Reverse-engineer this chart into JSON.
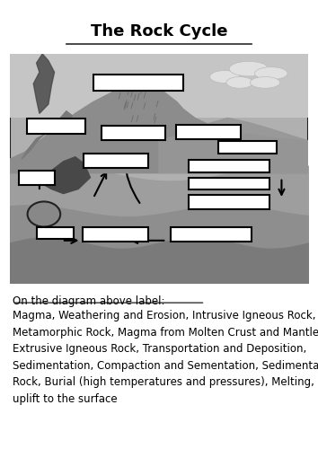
{
  "title": "The Rock Cycle",
  "title_fontsize": 13,
  "bg_color": "#ffffff",
  "image_bg": "#a0a0a0",
  "box_color": "#ffffff",
  "box_edge": "#000000",
  "instruction_underline": "On the diagram above label:",
  "instruction_text": "Magma, Weathering and Erosion, Intrusive Igneous Rock,\nMetamorphic Rock, Magma from Molten Crust and Mantle,\nExtrusive Igneous Rock, Transportation and Deposition,\nSedimentation, Compaction and Sementation, Sedimentary\nRock, Burial (high temperatures and pressures), Melting, Slow\nuplift to the surface"
}
